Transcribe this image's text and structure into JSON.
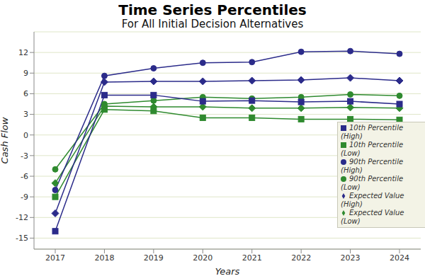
{
  "chart_data": {
    "type": "line",
    "title": "Time Series Percentiles",
    "subtitle": "For All Initial Decision Alternatives",
    "x_label": "Years",
    "y_label": "Cash Flow",
    "categories": [
      "2017",
      "2018",
      "2019",
      "2020",
      "2021",
      "2022",
      "2023",
      "2024"
    ],
    "ylim": [
      -16.6,
      15
    ],
    "yticks": [
      -15,
      -12,
      -9,
      -6,
      -3,
      0,
      3,
      6,
      9,
      12
    ],
    "grid": true,
    "legend": "right",
    "series": [
      {
        "name": "90th Percentile (Low)",
        "color": "#2f8a2f",
        "marker": "circle",
        "values": [
          -5,
          4.5,
          5.0,
          5.5,
          5.3,
          5.5,
          5.9,
          5.7
        ]
      },
      {
        "name": "10th Percentile (Low)",
        "color": "#2f8a2f",
        "marker": "square",
        "values": [
          -9,
          3.7,
          3.5,
          2.5,
          2.5,
          2.3,
          2.3,
          2.2
        ]
      },
      {
        "name": "Expected Value (Low)",
        "color": "#2f8a2f",
        "marker": "diamond",
        "values": [
          -7,
          4.2,
          4.1,
          4.1,
          3.9,
          3.9,
          4.0,
          3.9
        ]
      },
      {
        "name": "90th Percentile (High)",
        "color": "#2b2b8a",
        "marker": "circle",
        "values": [
          -8,
          8.6,
          9.7,
          10.5,
          10.6,
          12.1,
          12.2,
          11.8
        ]
      },
      {
        "name": "10th Percentile (High)",
        "color": "#2b2b8a",
        "marker": "square",
        "values": [
          -14,
          5.8,
          5.8,
          4.9,
          5.0,
          4.8,
          4.9,
          4.5
        ]
      },
      {
        "name": "Expected Value (High)",
        "color": "#2b2b8a",
        "marker": "diamond",
        "values": [
          -11.4,
          7.7,
          7.8,
          7.8,
          7.9,
          8.0,
          8.3,
          7.9
        ]
      }
    ]
  }
}
